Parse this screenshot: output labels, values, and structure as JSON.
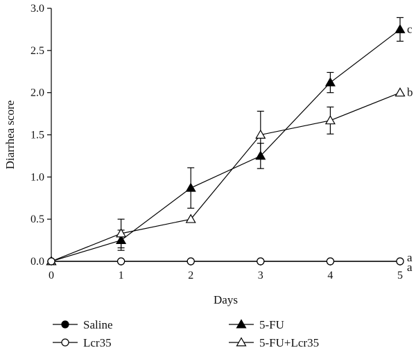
{
  "chart_data": {
    "type": "line",
    "title": "",
    "xlabel": "Days",
    "ylabel": "Diarrhea score",
    "x": [
      0,
      1,
      2,
      3,
      4,
      5
    ],
    "xlim": [
      0,
      5
    ],
    "ylim": [
      0,
      3.0
    ],
    "x_ticks": [
      "0",
      "1",
      "2",
      "3",
      "4",
      "5"
    ],
    "y_ticks": [
      "0.0",
      "0.5",
      "1.0",
      "1.5",
      "2.0",
      "2.5",
      "3.0"
    ],
    "grid": false,
    "legend_position": "bottom",
    "series": [
      {
        "name": "Saline",
        "marker": "filled-circle",
        "color": "#000000",
        "values": [
          0,
          0,
          0,
          0,
          0,
          0
        ],
        "errors": [
          0,
          0,
          0,
          0,
          0,
          0
        ]
      },
      {
        "name": "Lcr35",
        "marker": "open-circle",
        "color": "#000000",
        "values": [
          0,
          0,
          0,
          0,
          0,
          0
        ],
        "errors": [
          0,
          0,
          0,
          0,
          0,
          0
        ]
      },
      {
        "name": "5-FU",
        "marker": "filled-triangle",
        "color": "#000000",
        "values": [
          0,
          0.25,
          0.87,
          1.25,
          2.12,
          2.75
        ],
        "errors": [
          0,
          0.12,
          0.24,
          0.15,
          0.12,
          0.14
        ]
      },
      {
        "name": "5-FU+Lcr35",
        "marker": "open-triangle",
        "color": "#000000",
        "values": [
          0,
          0.33,
          0.5,
          1.5,
          1.67,
          2.0
        ],
        "errors": [
          0,
          0.17,
          0,
          0.28,
          0.16,
          0
        ]
      }
    ],
    "annotations": [
      {
        "text": "c",
        "x": 5,
        "y": 2.75
      },
      {
        "text": "b",
        "x": 5,
        "y": 2.0
      },
      {
        "text": "a",
        "x": 5,
        "y": 0
      },
      {
        "text": "a",
        "x": 5,
        "y": 0
      }
    ]
  }
}
